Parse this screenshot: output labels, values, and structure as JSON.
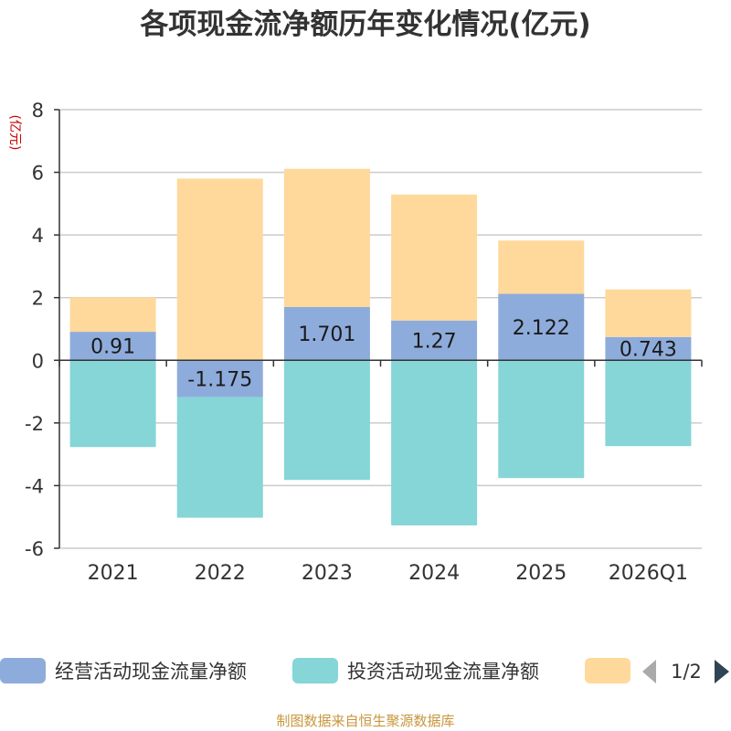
{
  "chart_data": {
    "type": "bar",
    "stacked": true,
    "title": "各项现金流净额历年变化情况(亿元)",
    "ylabel": "(亿元)",
    "xlabel": "",
    "ylim": [
      -6,
      8
    ],
    "yticks": [
      -6,
      -4,
      -2,
      0,
      2,
      4,
      6,
      8
    ],
    "grid": true,
    "categories": [
      "2021",
      "2022",
      "2023",
      "2024",
      "2025",
      "2026Q1"
    ],
    "series": [
      {
        "name": "经营活动现金流量净额",
        "color": "#8eacdb",
        "values": [
          0.91,
          -1.175,
          1.701,
          1.27,
          2.122,
          0.743
        ],
        "labels": [
          "0.91",
          "-1.175",
          "1.701",
          "1.27",
          "2.122",
          "0.743"
        ]
      },
      {
        "name": "投资活动现金流量净额",
        "color": "#86d5d7",
        "values": [
          -2.77,
          -3.85,
          -3.82,
          -5.27,
          -3.76,
          -2.74
        ]
      },
      {
        "name": "",
        "color": "#fed99b",
        "values": [
          1.1,
          5.8,
          4.41,
          4.02,
          1.7,
          1.52
        ]
      }
    ],
    "legend": {
      "position": "bottom",
      "page": "1/2"
    },
    "source": "制图数据来自恒生聚源数据库"
  }
}
